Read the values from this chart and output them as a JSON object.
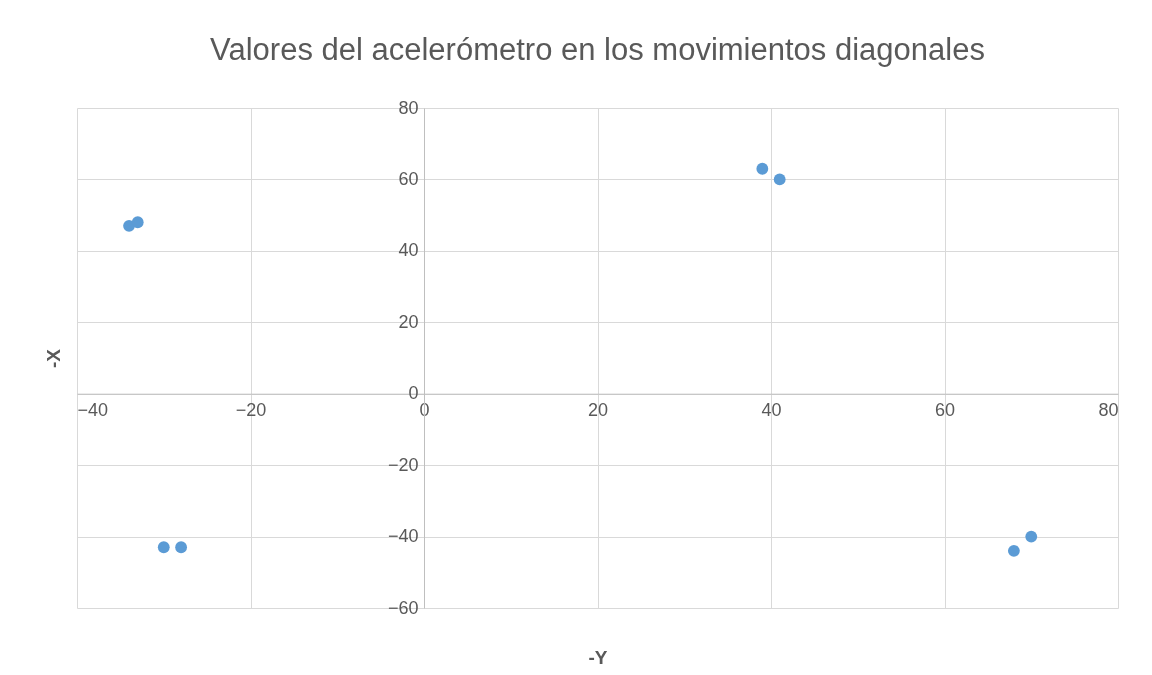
{
  "chart_data": {
    "type": "scatter",
    "title": "Valores del acelerómetro en los movimientos diagonales",
    "xlabel": "-Y",
    "ylabel": "-X",
    "x": [
      -34,
      -33,
      -30,
      -28,
      39,
      41,
      68,
      70
    ],
    "series": [
      {
        "color": "#5b9bd5",
        "values": [
          47,
          48,
          -43,
          -43,
          63,
          60,
          -44,
          -40
        ]
      }
    ],
    "xlim": [
      -40,
      80
    ],
    "xticks": [
      -40,
      -20,
      0,
      20,
      40,
      60,
      80
    ],
    "ylim": [
      -60,
      80
    ],
    "yticks": [
      -60,
      -40,
      -20,
      0,
      20,
      40,
      60,
      80
    ],
    "grid": true,
    "marker": "circle"
  }
}
